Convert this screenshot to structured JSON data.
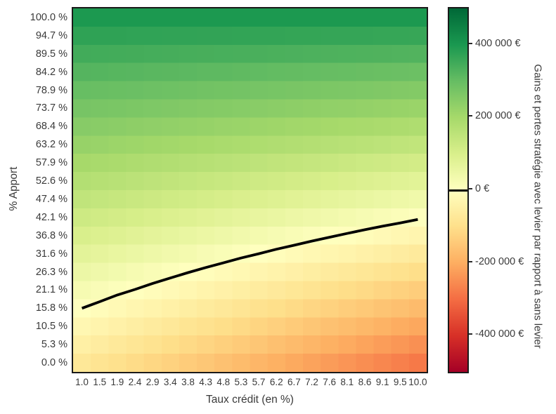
{
  "figure": {
    "background": "#ffffff",
    "text_color": "#3a3a3a",
    "axes_border_color": "#1a1a1a"
  },
  "chart_data": {
    "type": "heatmap",
    "title": "",
    "xlabel": "Taux crédit (en %)",
    "ylabel": "% Apport",
    "x_tick_labels": [
      "1.0",
      "1.5",
      "1.9",
      "2.4",
      "2.9",
      "3.4",
      "3.8",
      "4.3",
      "4.8",
      "5.3",
      "5.7",
      "6.2",
      "6.7",
      "7.2",
      "7.6",
      "8.1",
      "8.6",
      "9.1",
      "9.5",
      "10.0"
    ],
    "y_tick_labels": [
      "100.0 %",
      "94.7 %",
      "89.5 %",
      "84.2 %",
      "78.9 %",
      "73.7 %",
      "68.4 %",
      "63.2 %",
      "57.9 %",
      "52.6 %",
      "47.4 %",
      "42.1 %",
      "36.8 %",
      "31.6 %",
      "26.3 %",
      "21.1 %",
      "15.8 %",
      "10.5 %",
      "5.3 %",
      "0.0 %"
    ],
    "x_values_taux_pct": [
      1.0,
      1.47,
      1.95,
      2.42,
      2.89,
      3.37,
      3.84,
      4.32,
      4.79,
      5.26,
      5.74,
      6.21,
      6.68,
      7.16,
      7.63,
      8.11,
      8.58,
      9.05,
      9.53,
      10.0
    ],
    "y_values_apport_pct_top_to_bottom": [
      100.0,
      94.7,
      89.5,
      84.2,
      78.9,
      73.7,
      68.4,
      63.2,
      57.9,
      52.6,
      47.4,
      42.1,
      36.8,
      31.6,
      26.3,
      21.1,
      15.8,
      10.5,
      5.3,
      0.0
    ],
    "values_unit": "k€ (thousands of euros)",
    "values_note": "gains/pertes estimated from colormap; rows ordered top (100 % apport) to bottom (0 %), columns left (taux 1.0 %) to right (10.0 %)",
    "values": [
      [
        398,
        398,
        398,
        398,
        398,
        398,
        398,
        398,
        398,
        398,
        398,
        398,
        398,
        398,
        398,
        398,
        398,
        398,
        398,
        398
      ],
      [
        373,
        373,
        372,
        371,
        371,
        370,
        370,
        369,
        369,
        368,
        367,
        367,
        366,
        366,
        365,
        365,
        364,
        363,
        363,
        362
      ],
      [
        348,
        347,
        346,
        345,
        344,
        342,
        341,
        340,
        339,
        338,
        337,
        336,
        334,
        333,
        332,
        331,
        330,
        329,
        328,
        326
      ],
      [
        323,
        322,
        320,
        318,
        316,
        315,
        313,
        311,
        310,
        308,
        306,
        304,
        303,
        301,
        299,
        298,
        296,
        294,
        292,
        291
      ],
      [
        298,
        296,
        294,
        292,
        289,
        287,
        285,
        282,
        280,
        278,
        275,
        273,
        271,
        269,
        266,
        264,
        262,
        259,
        257,
        255
      ],
      [
        274,
        271,
        268,
        265,
        262,
        259,
        256,
        253,
        251,
        248,
        245,
        242,
        239,
        236,
        233,
        231,
        228,
        225,
        222,
        219
      ],
      [
        249,
        245,
        242,
        238,
        235,
        231,
        228,
        225,
        221,
        218,
        214,
        211,
        207,
        204,
        200,
        197,
        194,
        190,
        187,
        183
      ],
      [
        224,
        220,
        216,
        212,
        208,
        204,
        200,
        196,
        192,
        188,
        184,
        180,
        176,
        172,
        168,
        164,
        160,
        156,
        151,
        147
      ],
      [
        199,
        194,
        190,
        185,
        180,
        176,
        171,
        167,
        162,
        158,
        153,
        148,
        144,
        139,
        135,
        130,
        125,
        121,
        116,
        112
      ],
      [
        174,
        169,
        164,
        158,
        153,
        148,
        143,
        138,
        133,
        128,
        122,
        117,
        112,
        107,
        102,
        97,
        91,
        86,
        81,
        76
      ],
      [
        149,
        143,
        138,
        132,
        126,
        120,
        115,
        109,
        103,
        97,
        92,
        86,
        80,
        75,
        69,
        63,
        57,
        52,
        46,
        40
      ],
      [
        124,
        118,
        112,
        105,
        99,
        93,
        86,
        80,
        74,
        67,
        61,
        55,
        48,
        42,
        36,
        30,
        23,
        17,
        11,
        4
      ],
      [
        99,
        92,
        86,
        79,
        72,
        65,
        58,
        51,
        44,
        37,
        30,
        24,
        17,
        10,
        3,
        -4,
        -11,
        -18,
        -25,
        -31
      ],
      [
        74,
        67,
        59,
        52,
        45,
        37,
        30,
        22,
        15,
        7,
        0,
        -8,
        -15,
        -23,
        -30,
        -37,
        -45,
        -52,
        -60,
        -67
      ],
      [
        49,
        41,
        33,
        25,
        17,
        9,
        1,
        -7,
        -15,
        -23,
        -31,
        -39,
        -47,
        -55,
        -63,
        -71,
        -79,
        -87,
        -95,
        -103
      ],
      [
        25,
        16,
        7,
        -1,
        -10,
        -18,
        -27,
        -36,
        -44,
        -53,
        -61,
        -70,
        -79,
        -87,
        -96,
        -104,
        -113,
        -122,
        -130,
        -139
      ],
      [
        0,
        -9,
        -19,
        -28,
        -37,
        -46,
        -55,
        -65,
        -74,
        -83,
        -92,
        -101,
        -110,
        -120,
        -129,
        -138,
        -147,
        -156,
        -165,
        -175
      ],
      [
        -25,
        -35,
        -45,
        -54,
        -64,
        -74,
        -84,
        -93,
        -103,
        -113,
        -123,
        -132,
        -142,
        -152,
        -162,
        -171,
        -181,
        -191,
        -201,
        -210
      ],
      [
        -50,
        -60,
        -71,
        -81,
        -91,
        -102,
        -112,
        -122,
        -133,
        -143,
        -153,
        -164,
        -174,
        -184,
        -195,
        -205,
        -215,
        -226,
        -236,
        -246
      ],
      [
        -75,
        -86,
        -97,
        -108,
        -119,
        -129,
        -140,
        -151,
        -162,
        -173,
        -184,
        -195,
        -206,
        -217,
        -228,
        -238,
        -249,
        -260,
        -271,
        -282
      ]
    ],
    "contour": {
      "level_keur": 0,
      "color": "#000000"
    },
    "colorbar": {
      "label": "Gains et pertes stratégie avec levier par rapport à sans levier",
      "tick_labels": [
        "400 000 €",
        "200 000 €",
        "0 €",
        "-200 000 €",
        "-400 000 €"
      ],
      "tick_values_keur": [
        400,
        200,
        0,
        -200,
        -400
      ],
      "vmin_keur": -500,
      "vmax_keur": 500,
      "zero_line": true
    },
    "colormap": {
      "name": "RdYlGn",
      "stops_low_to_high": [
        "#a50026",
        "#d73027",
        "#f46d43",
        "#fdae61",
        "#fee08b",
        "#ffffbf",
        "#d9ef8b",
        "#a6d96a",
        "#66bd63",
        "#1a9850",
        "#006837"
      ]
    },
    "grid": false,
    "legend_position": "none"
  }
}
